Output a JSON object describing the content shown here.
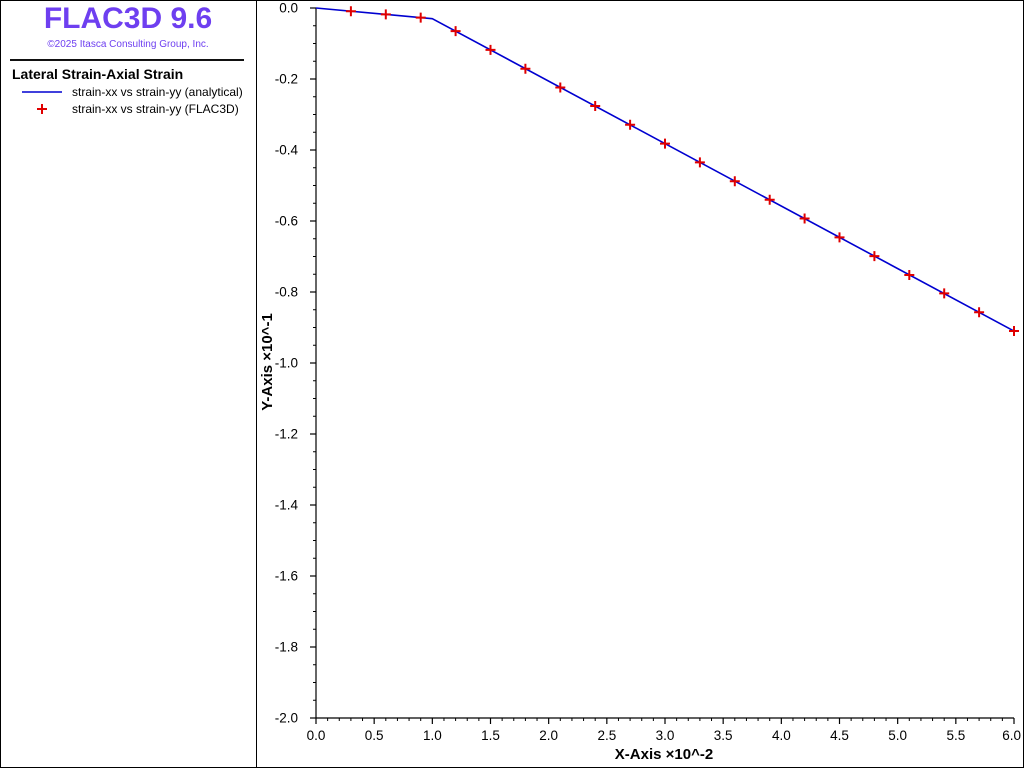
{
  "app": {
    "title": "FLAC3D 9.6",
    "copyright": "©2025 Itasca Consulting Group, Inc.",
    "accent_color": "#6e3ff0"
  },
  "chart_data": {
    "type": "line",
    "title": "Lateral Strain-Axial Strain",
    "xlabel": "X-Axis ×10^-2",
    "ylabel": "Y-Axis ×10^-1",
    "xlim": [
      0.0,
      6.0
    ],
    "ylim": [
      -2.0,
      0.0
    ],
    "x_ticks": [
      "0.0",
      "0.5",
      "1.0",
      "1.5",
      "2.0",
      "2.5",
      "3.0",
      "3.5",
      "4.0",
      "4.5",
      "5.0",
      "5.5",
      "6.0"
    ],
    "y_ticks": [
      "0.0",
      "-0.2",
      "-0.4",
      "-0.6",
      "-0.8",
      "-1.0",
      "-1.2",
      "-1.4",
      "-1.6",
      "-1.8",
      "-2.0"
    ],
    "grid": false,
    "legend_placement": "left panel",
    "series": [
      {
        "name": "strain-xx vs strain-yy (analytical)",
        "marker": "line",
        "color": "#0000d0",
        "x": [
          0.0,
          1.0,
          6.0
        ],
        "y": [
          0.0,
          -0.03,
          -0.91
        ]
      },
      {
        "name": "strain-xx vs strain-yy (FLAC3D)",
        "marker": "plus",
        "color": "#e00000",
        "x": [
          0.3,
          0.6,
          0.9,
          1.2,
          1.5,
          1.8,
          2.1,
          2.4,
          2.7,
          3.0,
          3.3,
          3.6,
          3.9,
          4.2,
          4.5,
          4.8,
          5.1,
          5.4,
          5.7,
          6.0
        ],
        "y": [
          -0.009,
          -0.018,
          -0.027,
          -0.065,
          -0.118,
          -0.171,
          -0.224,
          -0.276,
          -0.329,
          -0.382,
          -0.435,
          -0.488,
          -0.54,
          -0.593,
          -0.646,
          -0.699,
          -0.752,
          -0.804,
          -0.857,
          -0.91
        ]
      }
    ]
  }
}
